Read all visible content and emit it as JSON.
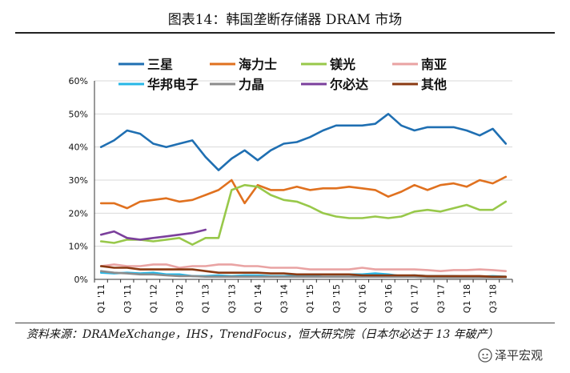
{
  "figure_title": "图表14：韩国垄断存储器 DRAM 市场",
  "source_note": "资料来源：DRAMeXchange，IHS，TrendFocus，恒大研究院（日本尔必达于 13 年破产）",
  "watermark": "泽平宏观",
  "colors": {
    "三星": "#1f6fb2",
    "海力士": "#e0711f",
    "镁光": "#98c84a",
    "南亚": "#e9a3a3",
    "华邦电子": "#27b7e6",
    "力晶": "#8c8c8c",
    "尔必达": "#7b3f9c",
    "其他": "#8a3a12"
  },
  "chart_data": {
    "type": "line",
    "title": "",
    "xlabel": "",
    "ylabel": "",
    "ylim": [
      0,
      0.6
    ],
    "y_ticks": [
      "0%",
      "10%",
      "20%",
      "30%",
      "40%",
      "50%",
      "60%"
    ],
    "legend_position": "top",
    "x": [
      "Q1 '11",
      "Q2 '11",
      "Q3 '11",
      "Q4 '11",
      "Q1 '12",
      "Q2 '12",
      "Q3 '12",
      "Q4 '12",
      "Q1 '13",
      "Q2 '13",
      "Q3 '13",
      "Q4 '13",
      "Q1 '14",
      "Q2 '14",
      "Q3 '14",
      "Q4 '14",
      "Q1 '15",
      "Q2 '15",
      "Q3 '15",
      "Q4 '15",
      "Q1 '16",
      "Q2 '16",
      "Q3 '16",
      "Q4 '16",
      "Q1 '17",
      "Q2 '17",
      "Q3 '17",
      "Q4 '17",
      "Q1 '18",
      "Q2 '18",
      "Q3 '18",
      "Q4 '18"
    ],
    "x_tick_labels": [
      "Q1 '11",
      "",
      "Q3 '11",
      "",
      "Q1 '12",
      "",
      "Q3 '12",
      "",
      "Q1 '13",
      "",
      "Q3 '13",
      "",
      "Q1 '14",
      "",
      "Q3 '14",
      "",
      "Q1 '15",
      "",
      "Q3 '15",
      "",
      "Q1 '16",
      "",
      "Q3 '16",
      "",
      "Q1 '17",
      "",
      "Q3 '17",
      "",
      "Q1 '18",
      "",
      "Q3 '18",
      ""
    ],
    "series": [
      {
        "name": "三星",
        "values": [
          0.4,
          0.42,
          0.45,
          0.44,
          0.41,
          0.4,
          0.41,
          0.42,
          0.37,
          0.33,
          0.365,
          0.39,
          0.36,
          0.39,
          0.41,
          0.415,
          0.43,
          0.45,
          0.465,
          0.465,
          0.465,
          0.47,
          0.5,
          0.465,
          0.45,
          0.46,
          0.46,
          0.46,
          0.45,
          0.435,
          0.455,
          0.41
        ]
      },
      {
        "name": "海力士",
        "values": [
          0.23,
          0.23,
          0.215,
          0.235,
          0.24,
          0.245,
          0.235,
          0.24,
          0.255,
          0.27,
          0.3,
          0.23,
          0.285,
          0.27,
          0.27,
          0.28,
          0.27,
          0.275,
          0.275,
          0.28,
          0.275,
          0.27,
          0.25,
          0.265,
          0.285,
          0.27,
          0.285,
          0.29,
          0.28,
          0.3,
          0.29,
          0.31
        ]
      },
      {
        "name": "镁光",
        "values": [
          0.115,
          0.11,
          0.12,
          0.12,
          0.115,
          0.12,
          0.125,
          0.105,
          0.125,
          0.125,
          0.27,
          0.285,
          0.28,
          0.255,
          0.24,
          0.235,
          0.22,
          0.2,
          0.19,
          0.185,
          0.185,
          0.19,
          0.185,
          0.19,
          0.205,
          0.21,
          0.205,
          0.215,
          0.225,
          0.21,
          0.21,
          0.235
        ]
      },
      {
        "name": "南亚",
        "values": [
          0.04,
          0.045,
          0.04,
          0.04,
          0.045,
          0.045,
          0.035,
          0.04,
          0.04,
          0.045,
          0.045,
          0.04,
          0.04,
          0.035,
          0.035,
          0.035,
          0.03,
          0.03,
          0.03,
          0.03,
          0.035,
          0.03,
          0.03,
          0.03,
          0.03,
          0.028,
          0.025,
          0.028,
          0.028,
          0.03,
          0.028,
          0.025
        ]
      },
      {
        "name": "华邦电子",
        "values": [
          0.02,
          0.018,
          0.02,
          0.018,
          0.02,
          0.015,
          0.015,
          0.01,
          0.01,
          0.012,
          0.01,
          0.012,
          0.012,
          0.01,
          0.01,
          0.012,
          0.012,
          0.015,
          0.015,
          0.015,
          0.015,
          0.018,
          0.015,
          0.01,
          0.012,
          0.01,
          0.01,
          0.01,
          0.008,
          0.008,
          0.01,
          0.008
        ]
      },
      {
        "name": "力晶",
        "values": [
          0.025,
          0.02,
          0.018,
          0.015,
          0.015,
          0.012,
          0.01,
          0.01,
          0.008,
          0.008,
          0.008,
          0.008,
          0.008,
          0.008,
          0.008,
          0.008,
          0.008,
          0.008,
          0.008,
          0.008,
          0.008,
          0.008,
          0.008,
          0.008,
          0.008,
          0.006,
          0.006,
          0.006,
          0.006,
          0.006,
          0.006,
          0.006
        ]
      },
      {
        "name": "尔必达",
        "values": [
          0.135,
          0.145,
          0.125,
          0.12,
          0.125,
          0.13,
          0.135,
          0.14,
          0.15,
          null,
          null,
          null,
          null,
          null,
          null,
          null,
          null,
          null,
          null,
          null,
          null,
          null,
          null,
          null,
          null,
          null,
          null,
          null,
          null,
          null,
          null,
          null
        ]
      },
      {
        "name": "其他",
        "values": [
          0.04,
          0.035,
          0.035,
          0.03,
          0.03,
          0.03,
          0.03,
          0.03,
          0.025,
          0.02,
          0.02,
          0.02,
          0.02,
          0.018,
          0.018,
          0.015,
          0.015,
          0.015,
          0.015,
          0.015,
          0.012,
          0.012,
          0.012,
          0.012,
          0.012,
          0.01,
          0.01,
          0.01,
          0.01,
          0.01,
          0.008,
          0.008
        ]
      }
    ]
  }
}
